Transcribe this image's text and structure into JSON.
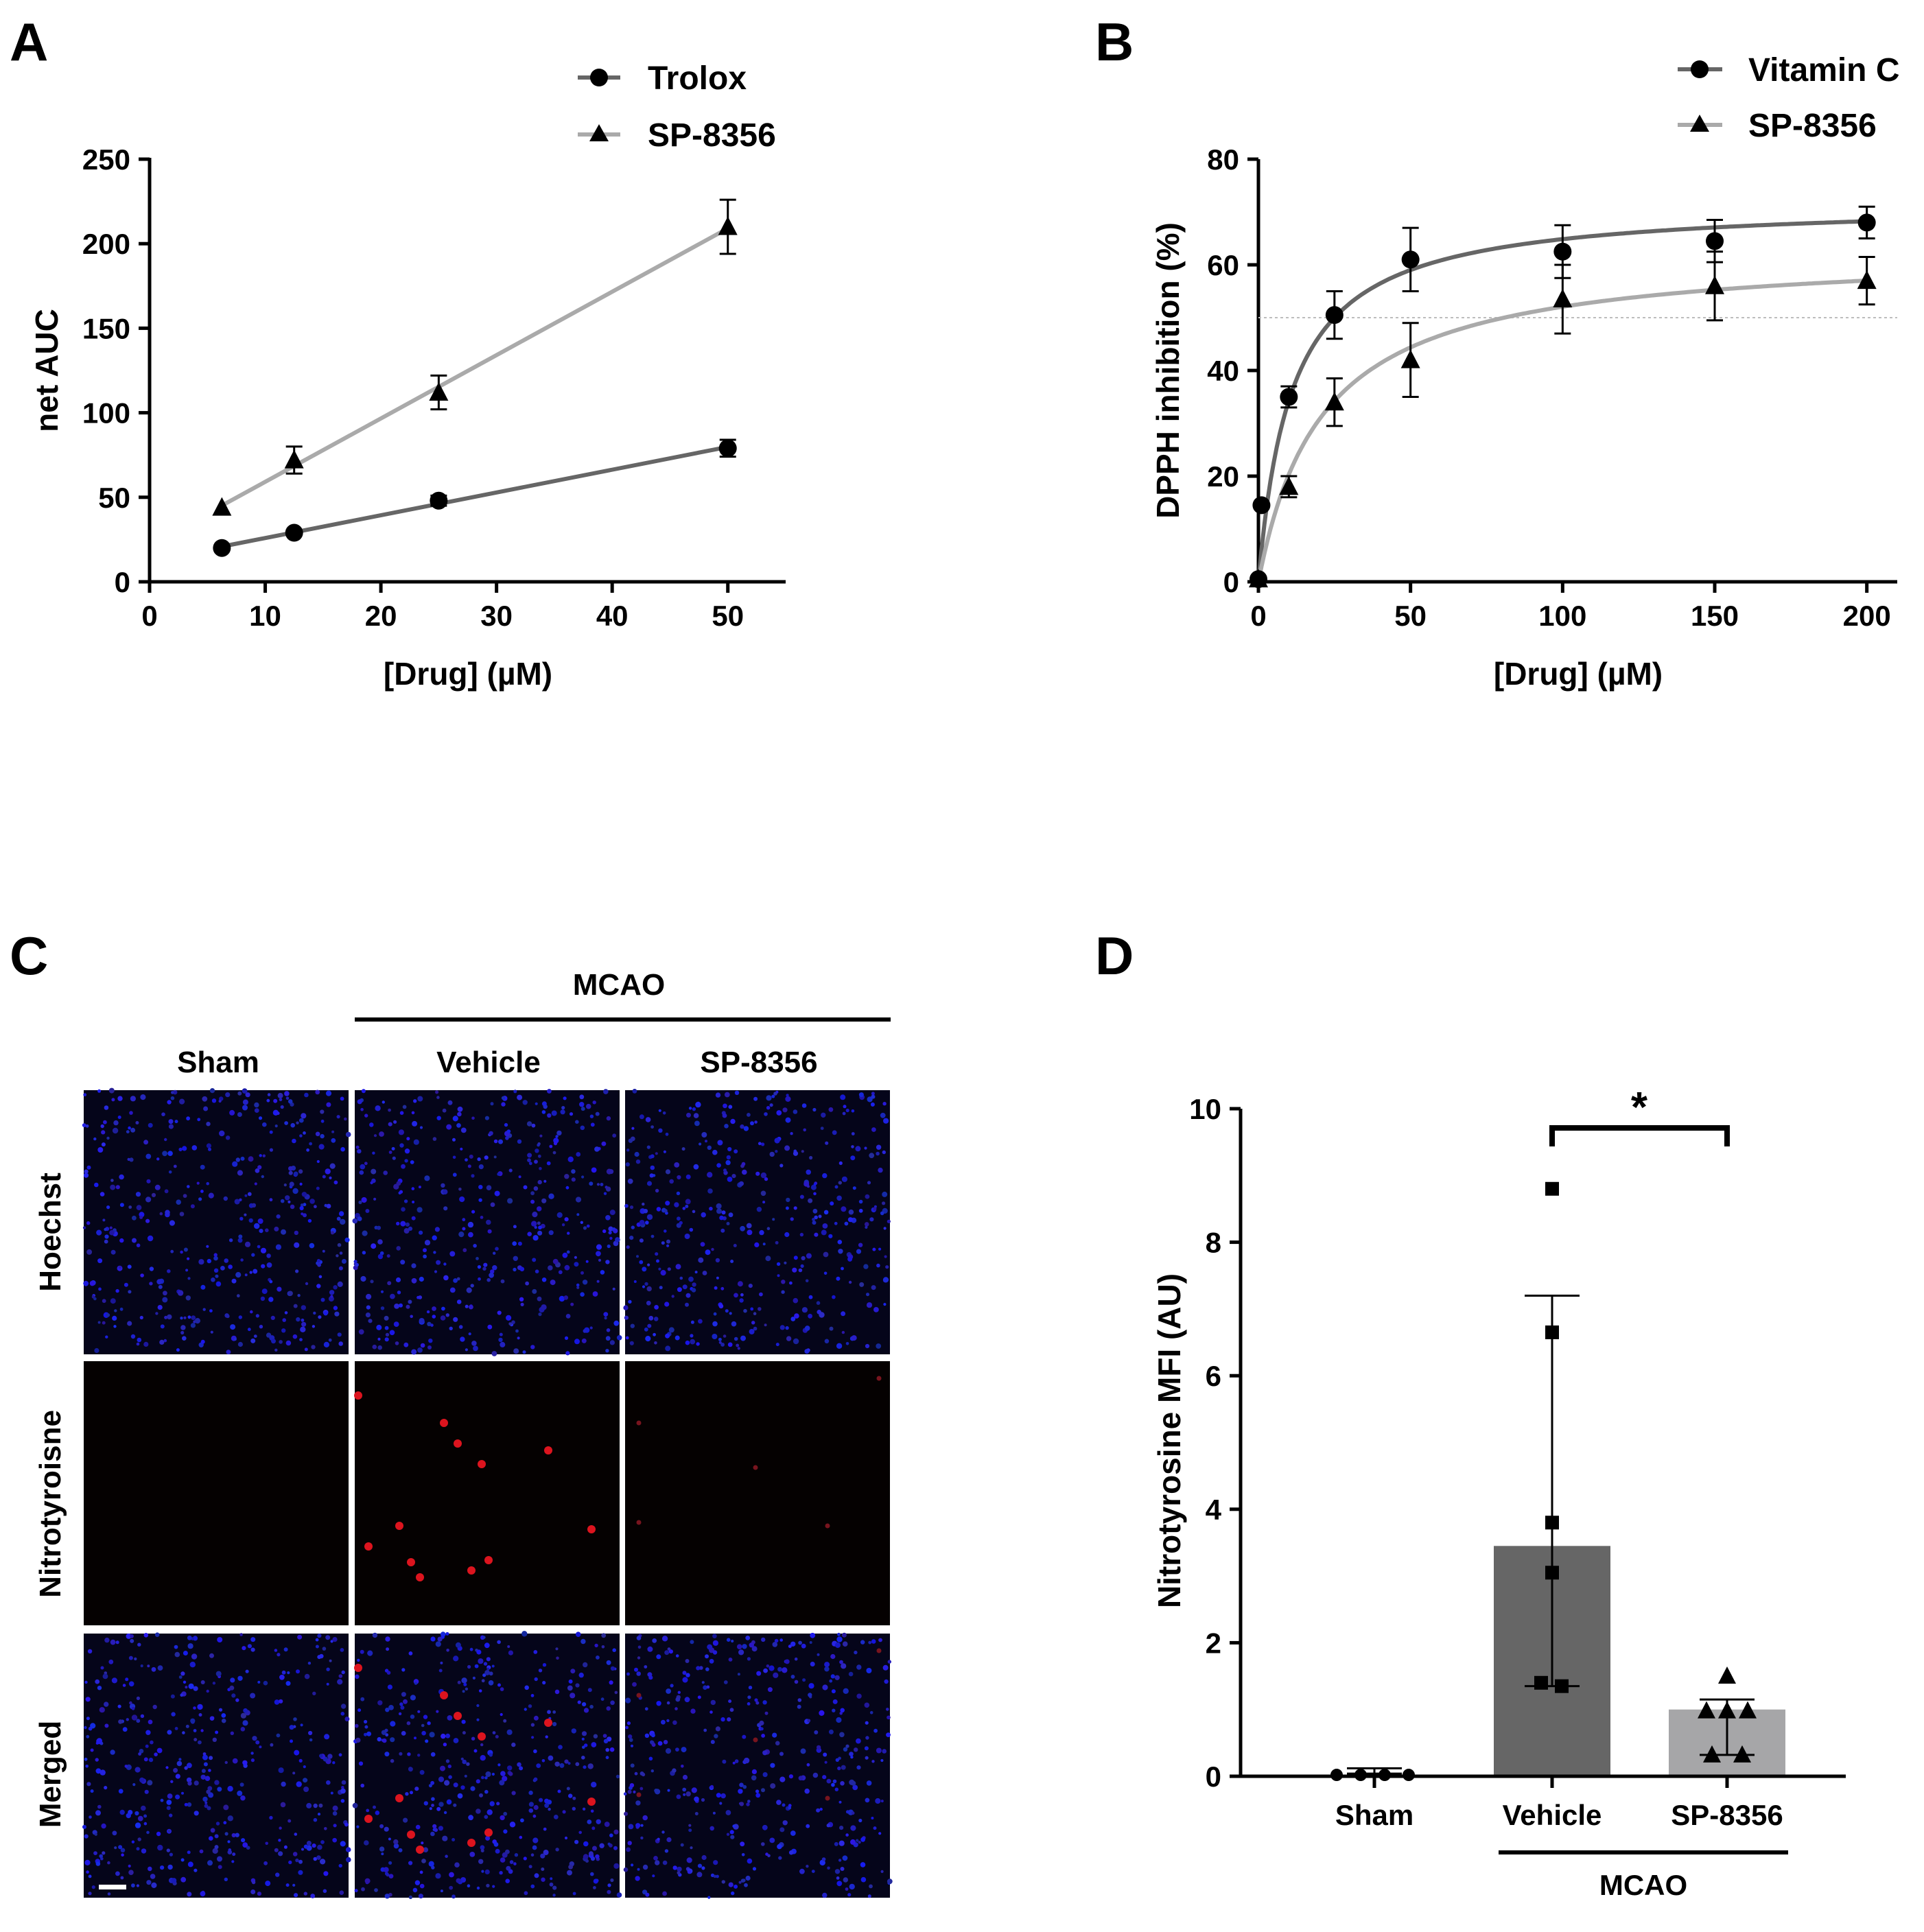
{
  "panels": {
    "A": "A",
    "B": "B",
    "C": "C",
    "D": "D"
  },
  "chart_data": [
    {
      "id": "A",
      "type": "line",
      "title": "",
      "xlabel": "[Drug] (µM)",
      "ylabel": "net AUC",
      "xlim": [
        0,
        55
      ],
      "ylim": [
        0,
        250
      ],
      "xticks": [
        0,
        10,
        20,
        30,
        40,
        50
      ],
      "yticks": [
        0,
        50,
        100,
        150,
        200,
        250
      ],
      "grid": false,
      "legend": "top-right",
      "series": [
        {
          "name": "Trolox",
          "marker": "circle",
          "color": "#666666",
          "x": [
            6.25,
            12.5,
            25,
            50
          ],
          "y": [
            20,
            29,
            48,
            79
          ],
          "err": [
            2,
            2,
            3,
            5
          ],
          "fit": "linear"
        },
        {
          "name": "SP-8356",
          "marker": "triangle",
          "color": "#aaaaaa",
          "x": [
            6.25,
            12.5,
            25,
            50
          ],
          "y": [
            44,
            72,
            112,
            210
          ],
          "err": [
            2,
            8,
            10,
            16
          ],
          "fit": "linear"
        }
      ]
    },
    {
      "id": "B",
      "type": "line",
      "title": "",
      "xlabel": "[Drug] (µM)",
      "ylabel": "DPPH inhibition (%)",
      "xlim": [
        0,
        210
      ],
      "ylim": [
        0,
        80
      ],
      "xticks": [
        0,
        50,
        100,
        150,
        200
      ],
      "yticks": [
        0,
        20,
        40,
        60,
        80
      ],
      "grid": false,
      "reference_line_y": 50,
      "legend": "top-right",
      "series": [
        {
          "name": "Vitamin C",
          "marker": "circle",
          "color": "#666666",
          "x": [
            0,
            1,
            10,
            25,
            50,
            100,
            150,
            200
          ],
          "y": [
            0.5,
            14.5,
            35,
            50.5,
            61,
            62.5,
            64.5,
            68
          ],
          "err": [
            0.5,
            1,
            2,
            4.5,
            6,
            5,
            4,
            3
          ],
          "fit": {
            "type": "hyperbolic",
            "top": 72,
            "ec50": 11
          }
        },
        {
          "name": "SP-8356",
          "marker": "triangle",
          "color": "#aaaaaa",
          "x": [
            0,
            10,
            25,
            50,
            100,
            150,
            200
          ],
          "y": [
            0.5,
            18,
            34,
            42,
            53.5,
            56,
            57
          ],
          "err": [
            0.5,
            2,
            4.5,
            7,
            6.5,
            6.5,
            4.5
          ],
          "fit": {
            "type": "hyperbolic",
            "top": 63,
            "ec50": 21
          }
        }
      ]
    },
    {
      "id": "D",
      "type": "bar",
      "title": "",
      "xlabel": "",
      "ylabel": "Nitrotyrosine MFI (AU)",
      "ylim": [
        0,
        10
      ],
      "yticks": [
        0,
        2,
        4,
        6,
        8,
        10
      ],
      "categories": [
        "Sham",
        "Vehicle",
        "SP-8356"
      ],
      "group_label": "MCAO",
      "significance": {
        "from": "Vehicle",
        "to": "SP-8356",
        "label": "*"
      },
      "bars": [
        {
          "category": "Sham",
          "value": 0.08,
          "err": 0.04,
          "color": "#ffffff",
          "points": [
            0.02,
            0.02,
            0.02,
            0.02
          ],
          "marker": "circle"
        },
        {
          "category": "Vehicle",
          "value": 3.45,
          "err_low": 1.35,
          "err_high": 7.2,
          "color": "#666666",
          "points": [
            8.8,
            6.65,
            3.8,
            3.05,
            1.4,
            1.35
          ],
          "marker": "square"
        },
        {
          "category": "SP-8356",
          "value": 1.0,
          "err_low": 0.32,
          "err_high": 1.15,
          "color": "#a6a6a8",
          "points": [
            1.5,
            0.98,
            0.98,
            0.98,
            0.32,
            0.32
          ],
          "marker": "triangle"
        }
      ]
    }
  ],
  "micrographs": {
    "group_label": "MCAO",
    "columns": [
      "Sham",
      "Vehicle",
      "SP-8356"
    ],
    "rows": [
      "Hoechst",
      "Nitrotyroisne",
      "Merged"
    ]
  }
}
